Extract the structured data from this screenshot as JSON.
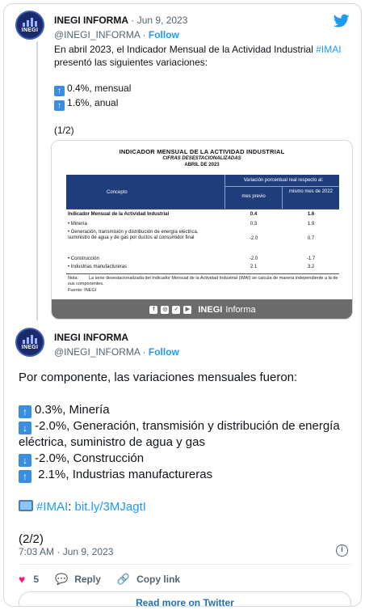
{
  "tweet1": {
    "name": "INEGI INFORMA",
    "date": "Jun 9, 2023",
    "handle": "@INEGI_INFORMA",
    "follow_label": "Follow",
    "intro_prefix": "En abril 2023, el Indicador Mensual de la Actividad Industrial ",
    "intro_hashtag": "#IMAI",
    "intro_suffix": " presentó las siguientes variaciones:",
    "line_monthly": "0.4%, mensual",
    "line_annual": "1.6%, anual",
    "counter": "(1/2)"
  },
  "media": {
    "title": "Indicador Mensual de la Actividad Industrial",
    "subtitle1": "Cifras desestacionalizadas",
    "subtitle2": "Abril de 2023",
    "col_concept": "Concepto",
    "col_variation": "Variación porcentual real respecto al:",
    "col_prev": "mes previo",
    "col_same": "mismo mes de 2022",
    "rows": [
      {
        "label": "Indicador Mensual de la Actividad Industrial",
        "prev": "0.4",
        "same": "1.6"
      },
      {
        "label": "•  Minería",
        "prev": "0.3",
        "same": "1.9"
      },
      {
        "label": "•  Generación, transmisión y distribución de energía eléctrica, suministro de agua y de gas por ductos al consumidor final",
        "prev": "-2.0",
        "same": "0.7"
      },
      {
        "label": "•  Construcción",
        "prev": "-2.0",
        "same": "-1.7"
      },
      {
        "label": "•  Industrias manufactureras",
        "prev": "2.1",
        "same": "3.2"
      }
    ],
    "note_label": "Nota:",
    "note_text": "La serie desestacionalizada del Indicador Mensual de la Actividad Industrial (IMAI) se calcula de manera independiente a la de sus componentes.",
    "source": "Fuente: INEGI",
    "footer_brand": "INEGI",
    "footer_brand_suffix": "Informa"
  },
  "tweet2": {
    "name": "INEGI INFORMA",
    "handle": "@INEGI_INFORMA",
    "follow_label": "Follow",
    "intro": "Por componente, las variaciones mensuales fueron:",
    "items": [
      {
        "dir": "up",
        "text": "0.3%, Minería"
      },
      {
        "dir": "down",
        "text": "-2.0%, Generación, transmisión y distribución de energía eléctrica, suministro de agua y gas"
      },
      {
        "dir": "down",
        "text": "-2.0%, Construcción"
      },
      {
        "dir": "up",
        "text": " 2.1%, Industrias manufactureras"
      }
    ],
    "hashtag": "#IMAI",
    "link_sep": ": ",
    "link": "bit.ly/3MJagtI",
    "counter": "(2/2)",
    "timestamp": "7:03 AM · Jun 9, 2023",
    "likes": "5",
    "reply_label": "Reply",
    "copy_label": "Copy link",
    "read_more": "Read more on Twitter"
  },
  "avatar_text": "INEGI",
  "colors": {
    "accent": "#1d9bf0",
    "heart": "#f91880",
    "table_header": "#1f3d7a"
  }
}
